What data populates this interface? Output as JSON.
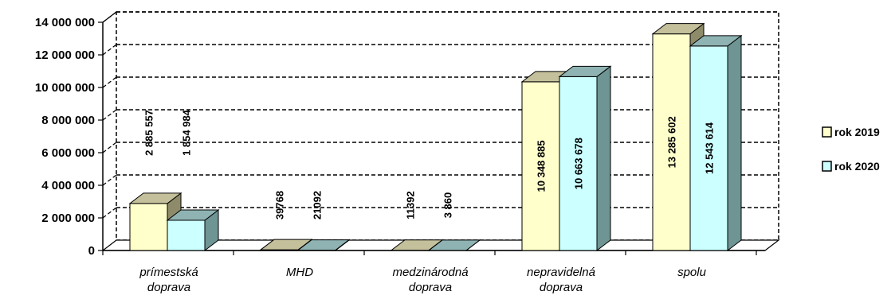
{
  "chart_data": {
    "type": "bar",
    "style": "3d-clustered-column",
    "categories": [
      [
        "prímestská",
        "doprava"
      ],
      [
        "MHD"
      ],
      [
        "medzinárodná",
        "doprava"
      ],
      [
        "nepravidelná",
        "doprava"
      ],
      [
        "spolu"
      ]
    ],
    "series": [
      {
        "name": "rok 2019",
        "color": "#ffffcc",
        "values": [
          2885557,
          39768,
          11392,
          10348885,
          13285602
        ],
        "labels": [
          "2 885 557",
          "39768",
          "11392",
          "10 348 885",
          "13 285 602"
        ]
      },
      {
        "name": "rok 2020",
        "color": "#ccffff",
        "values": [
          1854984,
          21092,
          3860,
          10663678,
          12543614
        ],
        "labels": [
          "1 854 984",
          "21092",
          "3 860",
          "10 663 678",
          "12 543 614"
        ]
      }
    ],
    "y_ticks": [
      {
        "value": 0,
        "label": "0"
      },
      {
        "value": 2000000,
        "label": "2 000 000"
      },
      {
        "value": 4000000,
        "label": "4 000 000"
      },
      {
        "value": 6000000,
        "label": "6 000 000"
      },
      {
        "value": 8000000,
        "label": "8 000 000"
      },
      {
        "value": 10000000,
        "label": "10 000 000"
      },
      {
        "value": 12000000,
        "label": "12 000 000"
      },
      {
        "value": 14000000,
        "label": "14 000 000"
      }
    ],
    "ylim": [
      0,
      14000000
    ],
    "grid": true,
    "grid_style": "dashed",
    "legend_position": "right",
    "title": "",
    "xlabel": "",
    "ylabel": ""
  }
}
